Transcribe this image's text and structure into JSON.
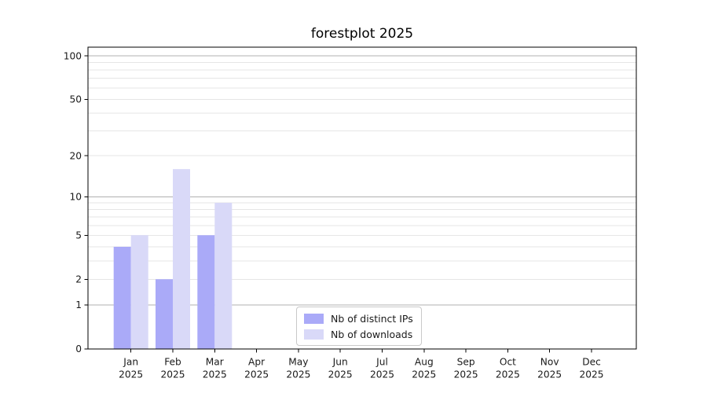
{
  "chart_data": {
    "type": "bar",
    "title": "forestplot 2025",
    "categories": [
      "Jan",
      "Feb",
      "Mar",
      "Apr",
      "May",
      "Jun",
      "Jul",
      "Aug",
      "Sep",
      "Oct",
      "Nov",
      "Dec"
    ],
    "category_year": "2025",
    "series": [
      {
        "name": "Nb of distinct IPs",
        "color": "#aaaaf8",
        "values": [
          4,
          2,
          5,
          0,
          0,
          0,
          0,
          0,
          0,
          0,
          0,
          0
        ]
      },
      {
        "name": "Nb of downloads",
        "color": "#d9d9f8",
        "values": [
          5,
          16,
          9,
          0,
          0,
          0,
          0,
          0,
          0,
          0,
          0,
          0
        ]
      }
    ],
    "yscale": "log1p",
    "ylim": [
      0,
      115
    ],
    "ytick_labels": [
      "100",
      "50",
      "20",
      "10",
      "5",
      "2",
      "1",
      "0"
    ],
    "ytick_values": [
      100,
      50,
      20,
      10,
      5,
      2,
      1,
      0
    ],
    "gridlines": {
      "major_values": [
        1,
        10,
        100
      ],
      "minor_values": [
        2,
        3,
        4,
        5,
        6,
        7,
        8,
        9,
        20,
        30,
        40,
        50,
        60,
        70,
        80,
        90
      ],
      "major_color": "#b0b0b0",
      "minor_color": "#e6e6e6"
    },
    "legend_position": "lower center",
    "axis_color": "#000000",
    "text_color": "#1a1a1a",
    "background_color": "#ffffff"
  }
}
